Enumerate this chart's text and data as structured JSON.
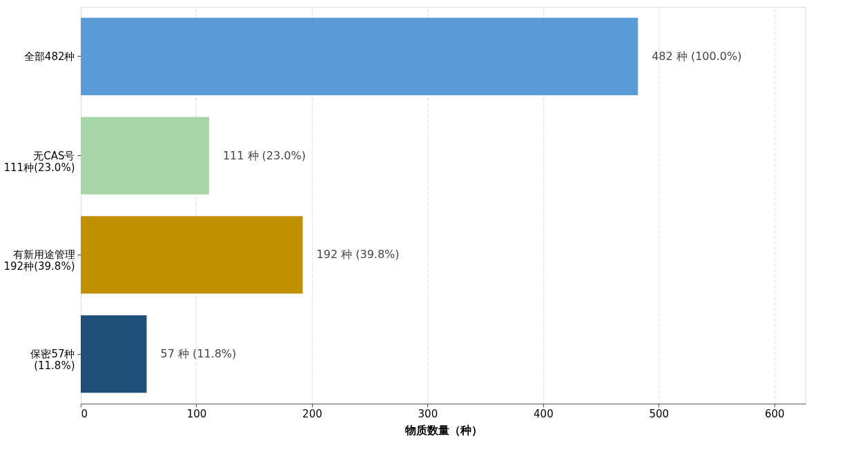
{
  "chart_data": {
    "type": "bar",
    "orientation": "horizontal",
    "xlabel": "物质数量（种）",
    "categories": [
      "全部482种",
      "无CAS号\n111种(23.0%)",
      "有新用途管理\n192种(39.8%)",
      "保密57种\n(11.8%)"
    ],
    "values": [
      482,
      111,
      192,
      57
    ],
    "colors": [
      "#5b9bd5",
      "#a8d5a8",
      "#bf9000",
      "#1f4e79"
    ],
    "value_labels": [
      "482 种 (100.0%)",
      "111 种 (23.0%)",
      "192 种 (39.8%)",
      "57 种 (11.8%)"
    ],
    "xlim": [
      0,
      627
    ],
    "xticks": [
      0,
      100,
      200,
      300,
      400,
      500,
      600
    ],
    "grid": "x",
    "legend": false
  }
}
